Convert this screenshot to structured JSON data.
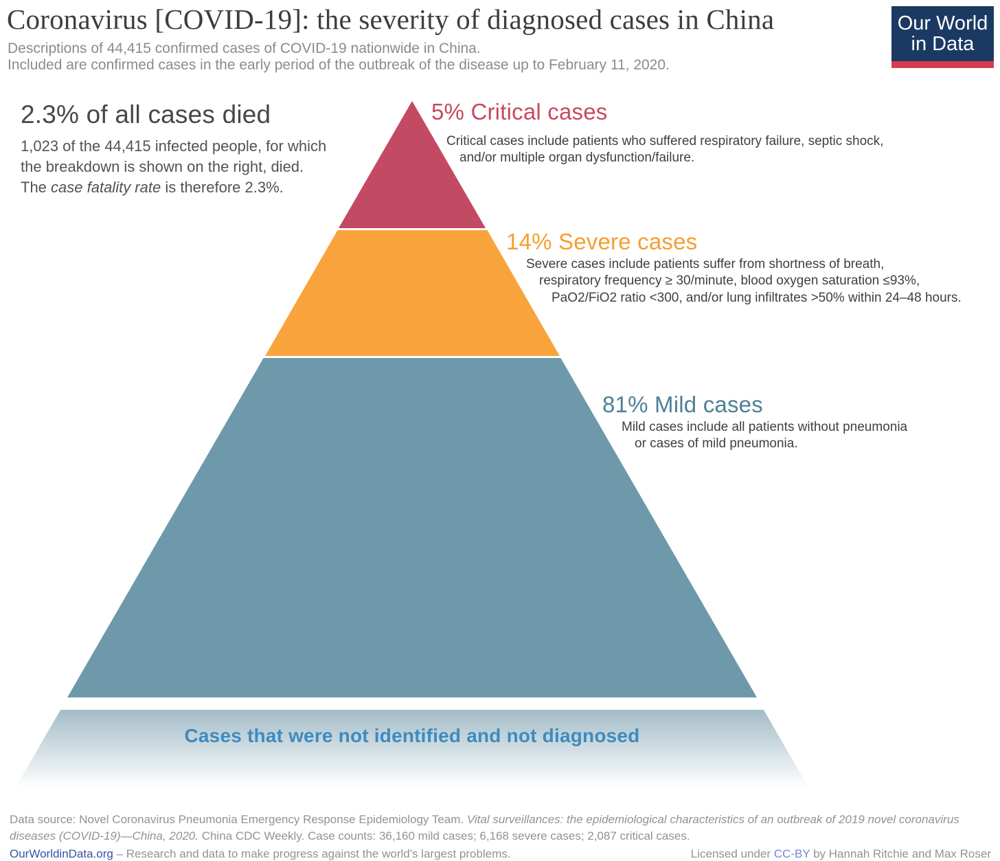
{
  "header": {
    "title": "Coronavirus [COVID-19]: the severity of diagnosed cases in China",
    "subtitle_line1": "Descriptions of 44,415 confirmed cases of COVID-19 nationwide in China.",
    "subtitle_line2": "Included are confirmed cases in the early period of the outbreak of the disease up to February 11, 2020.",
    "logo": {
      "line1": "Our World",
      "line2": "in Data"
    }
  },
  "died_note": {
    "heading": "2.3% of all cases died",
    "line1": "1,023 of the 44,415 infected people, for which",
    "line2": "the breakdown is shown on the right, died.",
    "line3_pre": "The ",
    "line3_italic": "case fatality rate",
    "line3_post": " is therefore 2.3%."
  },
  "sections": {
    "critical": {
      "heading": "5% Critical cases",
      "desc": [
        "Critical cases include patients who suffered respiratory failure, septic shock,",
        "and/or multiple organ dysfunction/failure."
      ]
    },
    "severe": {
      "heading": "14% Severe cases",
      "desc": [
        "Severe cases include patients suffer from shortness of breath,",
        "respiratory frequency ≥ 30/minute, blood oxygen saturation ≤93%,",
        "PaO2/FiO2 ratio <300, and/or lung infiltrates >50% within 24–48 hours."
      ]
    },
    "mild": {
      "heading": "81% Mild cases",
      "desc": [
        "Mild cases include all patients without pneumonia",
        "or cases of mild pneumonia."
      ]
    }
  },
  "base": {
    "label": "Cases that were not identified and not diagnosed"
  },
  "footer": {
    "line1_pre": "Data source: Novel Coronavirus Pneumonia Emergency Response Epidemiology Team. ",
    "line1_italic": "Vital surveillances: the epidemiological characteristics of an outbreak of 2019 novel coronavirus diseases (COVID-19)—China, 2020.",
    "line1_post": " China CDC Weekly. Case counts: 36,160 mild cases; 6,168 severe cases; 2,087 critical cases.",
    "link": "OurWorldinData.org",
    "tagline": " – Research and data to make progress against the world's largest problems.",
    "license_pre": "Licensed under ",
    "license_link": "CC-BY",
    "license_post": " by Hannah Ritchie and Max Roser"
  },
  "colors": {
    "critical_fill": "#c24a62",
    "severe_fill": "#f9a33c",
    "mild_fill": "#6e99aa",
    "critical_heading": "#c8495f",
    "severe_heading": "#f79e30",
    "mild_heading": "#4e8096",
    "base_label": "#3e8bc0",
    "logo_bg": "#1b3a63",
    "logo_stripe": "#d73d4e",
    "owid_link": "#3751a5",
    "ccby_link": "#7486d6"
  },
  "chart_data": {
    "type": "pyramid",
    "title": "Coronavirus [COVID-19]: the severity of diagnosed cases in China",
    "categories": [
      "Critical cases",
      "Severe cases",
      "Mild cases"
    ],
    "values_percent": [
      5,
      14,
      81
    ],
    "case_counts": [
      2087,
      6168,
      36160
    ],
    "total_confirmed_cases": 44415,
    "deaths": 1023,
    "case_fatality_rate_percent": 2.3,
    "data_cutoff": "February 11, 2020",
    "base_segment_label": "Cases that were not identified and not diagnosed",
    "segment_colors": [
      "#c24a62",
      "#f9a33c",
      "#6e99aa"
    ],
    "legend_position": "annotations-right-of-pyramid"
  }
}
